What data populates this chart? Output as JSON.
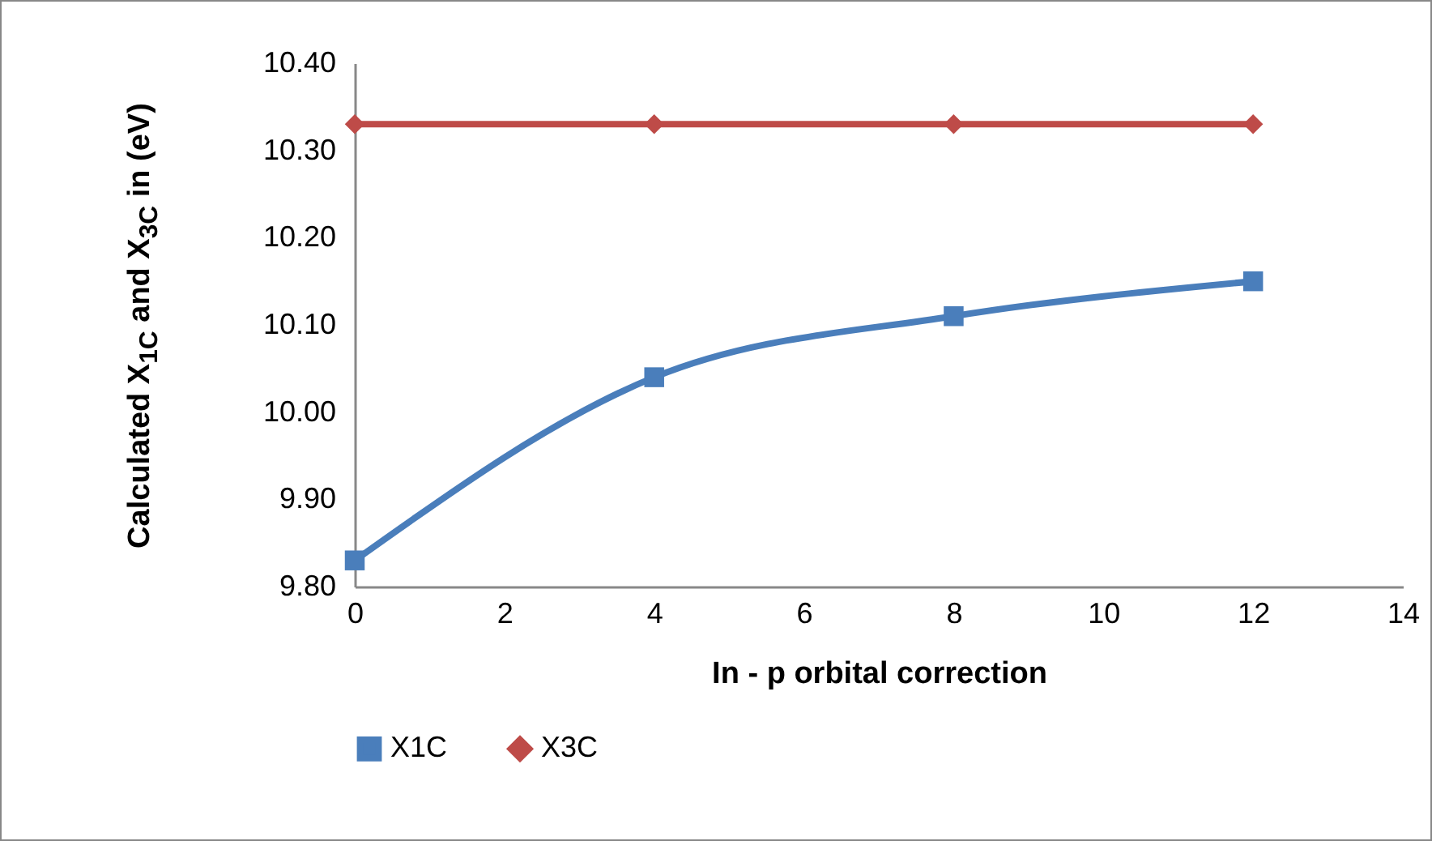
{
  "chart_data": {
    "type": "line",
    "xlabel": "In - p orbital correction",
    "ylabel": "Calculated X$_{1C}$ and X$_{3C}$ in (eV)",
    "x": [
      0,
      4,
      8,
      12
    ],
    "series": [
      {
        "name": "X1C",
        "color": "#4a7ebb",
        "marker": "square",
        "values": [
          9.83,
          10.04,
          10.11,
          10.15
        ]
      },
      {
        "name": "X3C",
        "color": "#be4b48",
        "marker": "diamond",
        "values": [
          10.33,
          10.33,
          10.33,
          10.33
        ]
      }
    ],
    "xlim": [
      0,
      14
    ],
    "xticks": [
      0,
      2,
      4,
      6,
      8,
      10,
      12,
      14
    ],
    "ylim": [
      9.8,
      10.4
    ],
    "yticks": [
      {
        "value": 9.8,
        "label": "9.80"
      },
      {
        "value": 9.9,
        "label": "9.90"
      },
      {
        "value": 10.0,
        "label": "10.00"
      },
      {
        "value": 10.1,
        "label": "10.10"
      },
      {
        "value": 10.2,
        "label": "10.20"
      },
      {
        "value": 10.3,
        "label": "10.30"
      },
      {
        "value": 10.4,
        "label": "10.40"
      }
    ],
    "grid": false,
    "legend": "bottom"
  }
}
